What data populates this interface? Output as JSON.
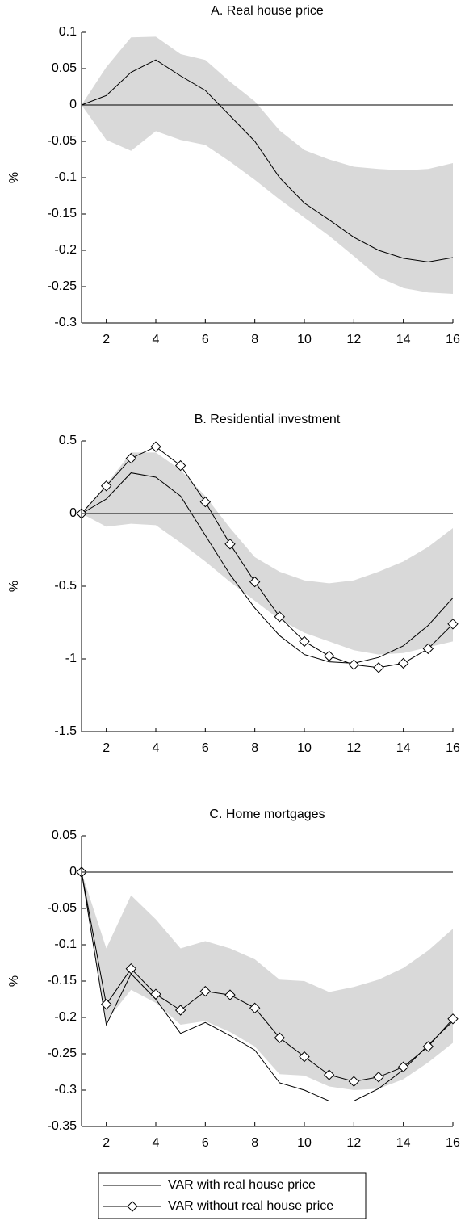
{
  "chart_data": [
    {
      "type": "line",
      "title": "A. Real house price",
      "y_label": "%",
      "x": [
        1,
        2,
        3,
        4,
        5,
        6,
        7,
        8,
        9,
        10,
        11,
        12,
        13,
        14,
        15,
        16
      ],
      "xlim": [
        1,
        16
      ],
      "xticks": [
        2,
        4,
        6,
        8,
        10,
        12,
        14,
        16
      ],
      "ylim": [
        -0.3,
        0.1
      ],
      "yticks": [
        0.1,
        0.05,
        0,
        -0.05,
        -0.1,
        -0.15,
        -0.2,
        -0.25,
        -0.3
      ],
      "hline": 0,
      "band": {
        "color": "#d9d9d9",
        "upper": [
          0,
          0.052,
          0.093,
          0.094,
          0.07,
          0.062,
          0.032,
          0.005,
          -0.035,
          -0.062,
          -0.075,
          -0.085,
          -0.088,
          -0.09,
          -0.088,
          -0.08
        ],
        "lower": [
          0,
          -0.048,
          -0.063,
          -0.036,
          -0.048,
          -0.055,
          -0.078,
          -0.103,
          -0.13,
          -0.155,
          -0.18,
          -0.208,
          -0.237,
          -0.252,
          -0.258,
          -0.26
        ]
      },
      "series": [
        {
          "color": "#000000",
          "values": [
            0,
            0.013,
            0.045,
            0.062,
            0.04,
            0.02,
            -0.015,
            -0.05,
            -0.1,
            -0.135,
            -0.158,
            -0.182,
            -0.2,
            -0.211,
            -0.216,
            -0.21
          ]
        }
      ]
    },
    {
      "type": "line",
      "title": "B. Residential investment",
      "y_label": "%",
      "x": [
        1,
        2,
        3,
        4,
        5,
        6,
        7,
        8,
        9,
        10,
        11,
        12,
        13,
        14,
        15,
        16
      ],
      "xlim": [
        1,
        16
      ],
      "xticks": [
        2,
        4,
        6,
        8,
        10,
        12,
        14,
        16
      ],
      "ylim": [
        -1.5,
        0.5
      ],
      "yticks": [
        0.5,
        0,
        -0.5,
        -1,
        -1.5
      ],
      "hline": 0,
      "band": {
        "color": "#d9d9d9",
        "upper": [
          0,
          0.2,
          0.42,
          0.42,
          0.3,
          0.12,
          -0.1,
          -0.3,
          -0.4,
          -0.46,
          -0.48,
          -0.46,
          -0.4,
          -0.33,
          -0.23,
          -0.1
        ],
        "lower": [
          0,
          -0.09,
          -0.07,
          -0.08,
          -0.2,
          -0.33,
          -0.47,
          -0.6,
          -0.73,
          -0.82,
          -0.88,
          -0.94,
          -0.97,
          -0.96,
          -0.92,
          -0.88
        ]
      },
      "series": [
        {
          "color": "#000000",
          "values": [
            0,
            0.1,
            0.28,
            0.25,
            0.12,
            -0.15,
            -0.42,
            -0.65,
            -0.84,
            -0.97,
            -1.02,
            -1.03,
            -0.99,
            -0.91,
            -0.77,
            -0.58
          ]
        },
        {
          "color": "#000000",
          "marker": "diamond",
          "values": [
            0,
            0.19,
            0.38,
            0.46,
            0.33,
            0.08,
            -0.21,
            -0.47,
            -0.71,
            -0.88,
            -0.98,
            -1.04,
            -1.06,
            -1.03,
            -0.93,
            -0.76
          ]
        }
      ]
    },
    {
      "type": "line",
      "title": "C. Home mortgages",
      "y_label": "%",
      "x": [
        1,
        2,
        3,
        4,
        5,
        6,
        7,
        8,
        9,
        10,
        11,
        12,
        13,
        14,
        15,
        16
      ],
      "xlim": [
        1,
        16
      ],
      "xticks": [
        2,
        4,
        6,
        8,
        10,
        12,
        14,
        16
      ],
      "ylim": [
        -0.35,
        0.05
      ],
      "yticks": [
        0.05,
        0,
        -0.05,
        -0.1,
        -0.15,
        -0.2,
        -0.25,
        -0.3,
        -0.35
      ],
      "hline": 0,
      "band": {
        "color": "#d9d9d9",
        "upper": [
          0,
          -0.105,
          -0.032,
          -0.065,
          -0.105,
          -0.095,
          -0.105,
          -0.12,
          -0.148,
          -0.15,
          -0.165,
          -0.158,
          -0.148,
          -0.132,
          -0.108,
          -0.078
        ],
        "lower": [
          0,
          -0.205,
          -0.162,
          -0.18,
          -0.21,
          -0.205,
          -0.22,
          -0.24,
          -0.278,
          -0.28,
          -0.295,
          -0.3,
          -0.298,
          -0.285,
          -0.262,
          -0.235
        ]
      },
      "series": [
        {
          "name": "VAR with real house price",
          "color": "#000000",
          "values": [
            0,
            -0.21,
            -0.14,
            -0.175,
            -0.222,
            -0.207,
            -0.225,
            -0.245,
            -0.29,
            -0.3,
            -0.315,
            -0.315,
            -0.298,
            -0.272,
            -0.238,
            -0.205
          ]
        },
        {
          "name": "VAR without real house price",
          "color": "#000000",
          "marker": "diamond",
          "values": [
            0,
            -0.182,
            -0.133,
            -0.168,
            -0.19,
            -0.164,
            -0.169,
            -0.187,
            -0.228,
            -0.254,
            -0.279,
            -0.288,
            -0.282,
            -0.268,
            -0.24,
            -0.202
          ]
        }
      ]
    }
  ]
}
